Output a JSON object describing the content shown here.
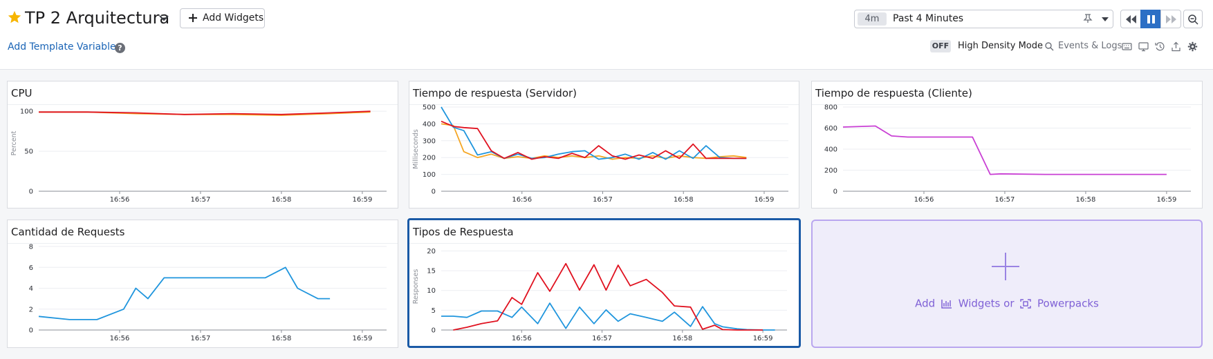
{
  "header": {
    "dashboard_title": "TP 2 Arquitectura",
    "add_widgets_label": "Add Widgets",
    "template_vars_label": "Add Template Variables",
    "help_label": "?",
    "time_badge": "4m",
    "time_range": "Past 4 Minutes",
    "density_state": "OFF",
    "density_label": "High Density Mode",
    "events_logs_label": "Events & Logs"
  },
  "colors": {
    "accent": "#1a64b6",
    "red": "#e0111f",
    "blue": "#1f95dd",
    "orange": "#f5a623",
    "magenta": "#c93fd4",
    "purple": "#7f61d6"
  },
  "placeholder": {
    "add_label": "Add",
    "widgets_label": "Widgets or",
    "powerpacks_label": "Powerpacks"
  },
  "chart_data": [
    {
      "id": "cpu",
      "type": "line",
      "title": "CPU",
      "ylabel": "Percent",
      "ylim": [
        0,
        120
      ],
      "yticks": [
        0,
        50,
        100
      ],
      "xlim": [
        0,
        4.3
      ],
      "xticks": [
        {
          "v": 1,
          "label": "16:56"
        },
        {
          "v": 2,
          "label": "16:57"
        },
        {
          "v": 3,
          "label": "16:58"
        },
        {
          "v": 4,
          "label": "16:59"
        }
      ],
      "series": [
        {
          "color": "#f5a623",
          "x": [
            0,
            0.6,
            1.2,
            1.8,
            2.4,
            3.0,
            3.6,
            4.1
          ],
          "y": [
            99,
            99,
            97,
            96,
            96,
            95,
            97,
            99
          ]
        },
        {
          "color": "#e0111f",
          "x": [
            0,
            0.6,
            1.2,
            1.8,
            2.4,
            3.0,
            3.6,
            4.1
          ],
          "y": [
            99,
            99,
            98,
            96,
            97,
            96,
            98,
            100
          ]
        }
      ]
    },
    {
      "id": "srv",
      "type": "line",
      "title": "Tiempo de respuesta (Servidor)",
      "ylabel": "Milliseconds",
      "ylim": [
        0,
        500
      ],
      "yticks": [
        0,
        100,
        200,
        300,
        400,
        500
      ],
      "xlim": [
        0,
        4.3
      ],
      "xticks": [
        {
          "v": 1,
          "label": "16:56"
        },
        {
          "v": 2,
          "label": "16:57"
        },
        {
          "v": 3,
          "label": "16:58"
        },
        {
          "v": 4,
          "label": "16:59"
        }
      ],
      "series": [
        {
          "color": "#f5a623",
          "x": [
            0,
            0.15,
            0.28,
            0.45,
            0.62,
            0.78,
            0.95,
            1.12,
            1.28,
            1.45,
            1.62,
            1.78,
            1.95,
            2.12,
            2.28,
            2.45,
            2.62,
            2.78,
            2.95,
            3.12,
            3.28,
            3.45,
            3.62,
            3.78
          ],
          "y": [
            400,
            390,
            235,
            200,
            220,
            195,
            205,
            195,
            210,
            200,
            210,
            200,
            210,
            190,
            200,
            195,
            210,
            195,
            210,
            200,
            195,
            205,
            210,
            200
          ]
        },
        {
          "color": "#1f95dd",
          "x": [
            0,
            0.15,
            0.28,
            0.45,
            0.62,
            0.78,
            0.95,
            1.12,
            1.28,
            1.45,
            1.62,
            1.78,
            1.95,
            2.12,
            2.28,
            2.45,
            2.62,
            2.78,
            2.95,
            3.12,
            3.28,
            3.45,
            3.62,
            3.78
          ],
          "y": [
            500,
            380,
            360,
            215,
            235,
            195,
            220,
            195,
            200,
            220,
            235,
            240,
            190,
            200,
            220,
            190,
            230,
            190,
            240,
            195,
            270,
            200,
            195,
            195
          ]
        },
        {
          "color": "#e0111f",
          "x": [
            0,
            0.15,
            0.28,
            0.45,
            0.62,
            0.78,
            0.95,
            1.12,
            1.28,
            1.45,
            1.62,
            1.78,
            1.95,
            2.12,
            2.28,
            2.45,
            2.62,
            2.78,
            2.95,
            3.12,
            3.28,
            3.45,
            3.62,
            3.78
          ],
          "y": [
            415,
            385,
            378,
            372,
            240,
            195,
            230,
            190,
            205,
            195,
            225,
            200,
            270,
            210,
            190,
            215,
            195,
            240,
            195,
            280,
            195,
            195,
            195,
            195
          ]
        }
      ]
    },
    {
      "id": "cli",
      "type": "line",
      "title": "Tiempo de respuesta (Cliente)",
      "ylabel": "",
      "ylim": [
        0,
        800
      ],
      "yticks": [
        0,
        200,
        400,
        600,
        800
      ],
      "xlim": [
        0,
        4.3
      ],
      "xticks": [
        {
          "v": 1,
          "label": "16:56"
        },
        {
          "v": 2,
          "label": "16:57"
        },
        {
          "v": 3,
          "label": "16:58"
        },
        {
          "v": 4,
          "label": "16:59"
        }
      ],
      "series": [
        {
          "color": "#c93fd4",
          "x": [
            0,
            0.4,
            0.6,
            0.8,
            1.6,
            1.82,
            1.95,
            2.5,
            3.0,
            3.5,
            4.0
          ],
          "y": [
            610,
            620,
            525,
            515,
            515,
            160,
            165,
            160,
            160,
            160,
            160
          ]
        }
      ]
    },
    {
      "id": "req",
      "type": "line",
      "title": "Cantidad de Requests",
      "ylabel": "",
      "ylim": [
        0,
        8
      ],
      "yticks": [
        0,
        2,
        4,
        6,
        8
      ],
      "xlim": [
        0,
        4.3
      ],
      "xticks": [
        {
          "v": 1,
          "label": "16:56"
        },
        {
          "v": 2,
          "label": "16:57"
        },
        {
          "v": 3,
          "label": "16:58"
        },
        {
          "v": 4,
          "label": "16:59"
        }
      ],
      "series": [
        {
          "color": "#1f95dd",
          "x": [
            0,
            0.38,
            0.72,
            1.05,
            1.2,
            1.35,
            1.55,
            1.85,
            2.5,
            2.8,
            3.05,
            3.2,
            3.45,
            3.6
          ],
          "y": [
            1.3,
            1,
            1,
            2,
            4,
            3,
            5,
            5,
            5,
            5,
            6,
            4,
            3,
            3
          ]
        }
      ]
    },
    {
      "id": "resp",
      "type": "line",
      "title": "Tipos de Respuesta",
      "ylabel": "Responses",
      "ylim": [
        0,
        22
      ],
      "yticks": [
        0,
        5,
        10,
        15,
        20
      ],
      "xlim": [
        0,
        4.3
      ],
      "xticks": [
        {
          "v": 1,
          "label": "16:56"
        },
        {
          "v": 2,
          "label": "16:57"
        },
        {
          "v": 3,
          "label": "16:58"
        },
        {
          "v": 4,
          "label": "16:59"
        }
      ],
      "series": [
        {
          "color": "#1f95dd",
          "x": [
            0,
            0.15,
            0.32,
            0.5,
            0.7,
            0.88,
            1.0,
            1.2,
            1.35,
            1.55,
            1.72,
            1.9,
            2.05,
            2.2,
            2.35,
            2.55,
            2.75,
            2.9,
            3.1,
            3.25,
            3.4,
            3.5,
            3.68,
            3.8,
            4.0,
            4.15
          ],
          "y": [
            3.5,
            3.5,
            3.2,
            4.8,
            4.8,
            3.2,
            5.8,
            1.6,
            6.8,
            0.4,
            5.8,
            1.6,
            5.1,
            2.2,
            4.1,
            3.2,
            2.2,
            4.5,
            0.9,
            5.9,
            1.6,
            0.8,
            0.3,
            0.1,
            0,
            0
          ]
        },
        {
          "color": "#e0111f",
          "x": [
            0.15,
            0.32,
            0.5,
            0.7,
            0.88,
            1.0,
            1.2,
            1.35,
            1.55,
            1.72,
            1.9,
            2.05,
            2.2,
            2.35,
            2.55,
            2.75,
            2.9,
            3.1,
            3.25,
            3.4,
            3.5,
            3.68,
            3.8,
            4.0
          ],
          "y": [
            0,
            0.7,
            1.6,
            2.3,
            8.2,
            6.5,
            14.5,
            9.8,
            16.8,
            10.1,
            16.5,
            10.1,
            16.4,
            11.2,
            12.8,
            9.5,
            6.1,
            5.8,
            0.2,
            1.2,
            0.1,
            0,
            0,
            0
          ]
        }
      ]
    }
  ]
}
